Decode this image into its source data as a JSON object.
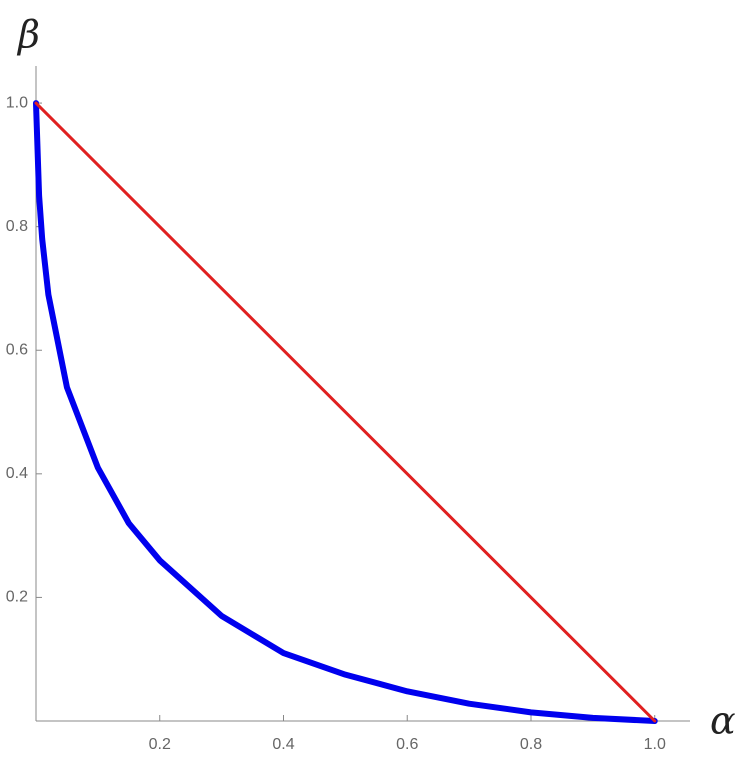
{
  "chart_data": {
    "type": "line",
    "x_label": "α",
    "y_label": "β",
    "xlim": [
      0,
      1.057
    ],
    "ylim": [
      0,
      1.06
    ],
    "xticks": [
      0.2,
      0.4,
      0.6,
      0.8,
      {
        "value": 1,
        "label": "1.0"
      }
    ],
    "yticks": [
      0.2,
      0.4,
      0.6,
      0.8,
      {
        "value": 1,
        "label": "1.0"
      }
    ],
    "series": [
      {
        "color": "#0000ee",
        "width": 6,
        "x": [
          0,
          0.005,
          0.01,
          0.02,
          0.05,
          0.1,
          0.15,
          0.2,
          0.3,
          0.4,
          0.5,
          0.6,
          0.7,
          0.8,
          0.9,
          1
        ],
        "values": [
          1,
          0.85,
          0.78,
          0.69,
          0.54,
          0.41,
          0.32,
          0.26,
          0.17,
          0.11,
          0.075,
          0.048,
          0.028,
          0.014,
          0.005,
          0
        ]
      },
      {
        "color": "#e02020",
        "width": 3,
        "x": [
          0,
          1
        ],
        "values": [
          1,
          0
        ]
      }
    ]
  }
}
